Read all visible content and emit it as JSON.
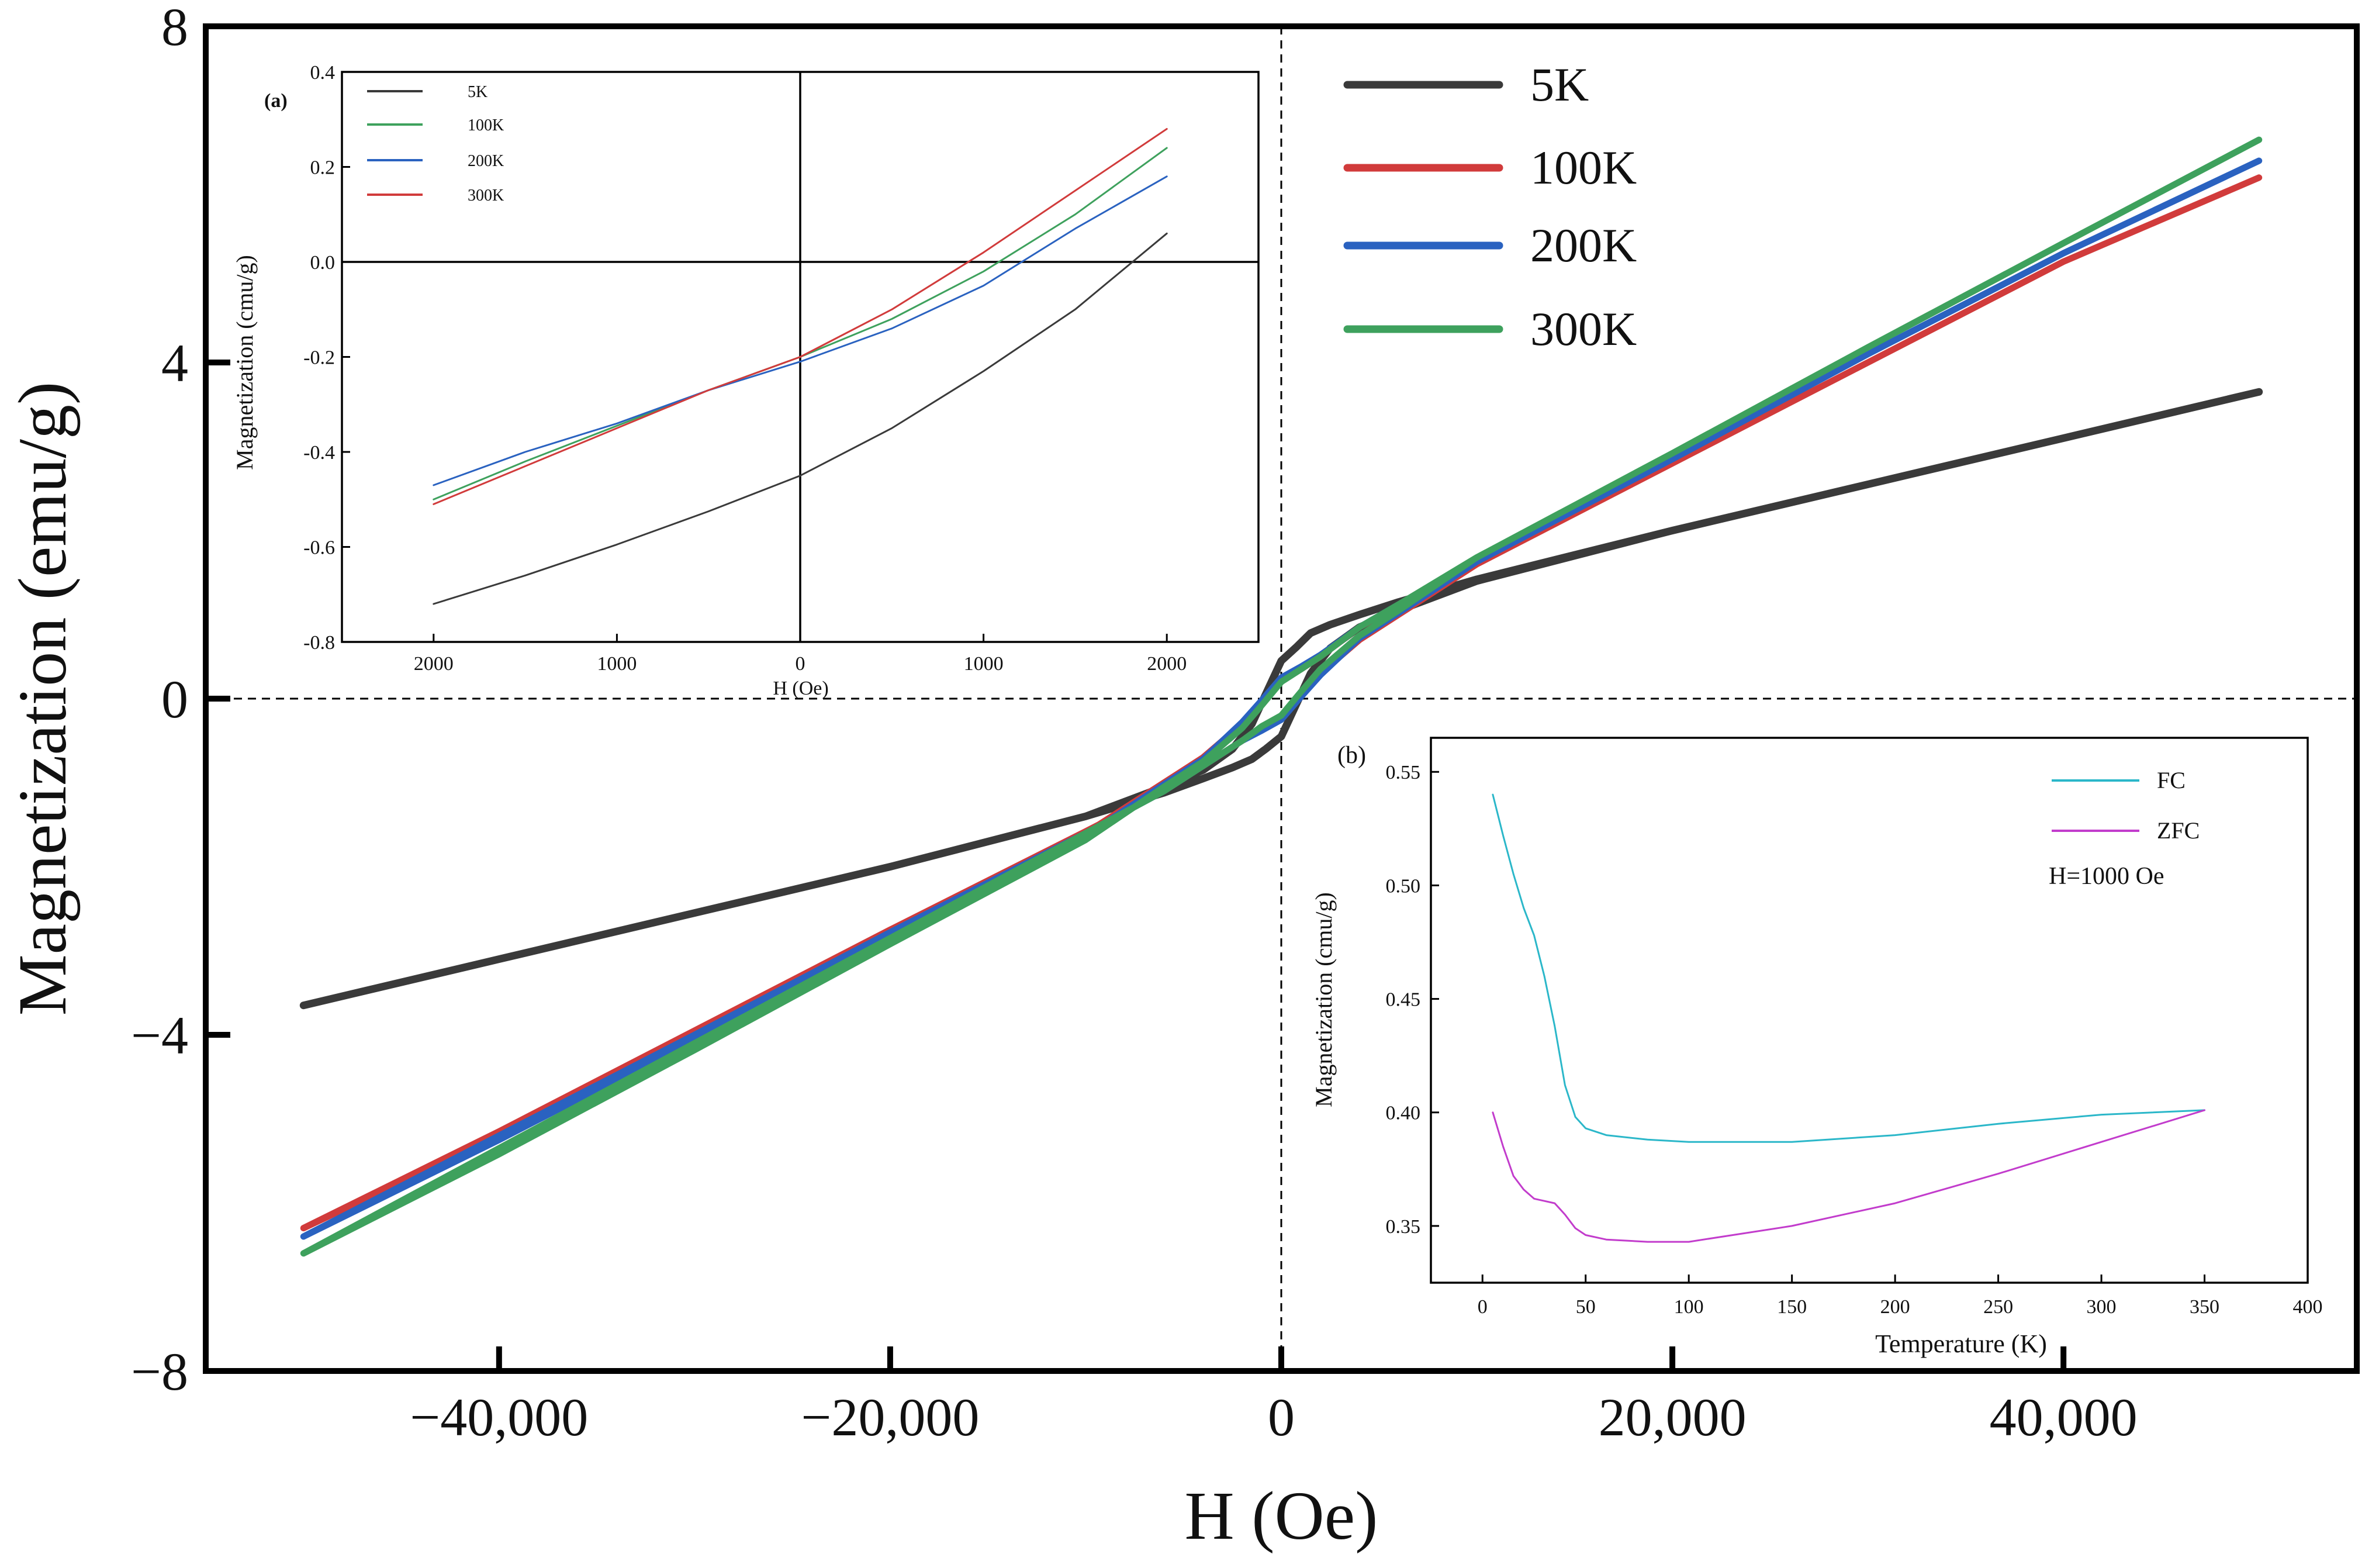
{
  "chart_data": [
    {
      "id": "main",
      "type": "line",
      "xlabel": "H (Oe)",
      "ylabel": "Magnetization (emu/g)",
      "xlim": [
        -55000,
        55000
      ],
      "ylim": [
        -8,
        8
      ],
      "xticks": [
        -40000,
        -20000,
        0,
        20000,
        40000
      ],
      "xtick_labels": [
        "−40,000",
        "−20,000",
        "0",
        "20,000",
        "40,000"
      ],
      "yticks": [
        -8,
        -4,
        0,
        4,
        8
      ],
      "ytick_labels": [
        "−8",
        "−4",
        "0",
        "4",
        "8"
      ],
      "zero_lines": true,
      "legend": {
        "placement": "top-right"
      },
      "series": [
        {
          "name": "5K",
          "color": "#3a3a3a",
          "width": 13,
          "x": [
            -50000,
            -40000,
            -30000,
            -20000,
            -10000,
            -6000,
            -4000,
            -2500,
            -1500,
            -800,
            0,
            800,
            1500,
            2500,
            4000,
            6000,
            10000,
            20000,
            30000,
            40000,
            50000,
            40000,
            30000,
            20000,
            10000,
            6000,
            4000,
            2500,
            1500,
            800,
            0,
            -800,
            -1500,
            -2500,
            -4000,
            -6000,
            -10000,
            -20000,
            -30000,
            -40000,
            -50000
          ],
          "y": [
            -3.65,
            -3.1,
            -2.55,
            -2.0,
            -1.4,
            -1.12,
            -0.95,
            -0.82,
            -0.72,
            -0.6,
            -0.45,
            -0.05,
            0.3,
            0.6,
            0.85,
            1.05,
            1.4,
            2.0,
            2.55,
            3.1,
            3.65,
            3.1,
            2.55,
            2.0,
            1.42,
            1.15,
            1.0,
            0.88,
            0.78,
            0.62,
            0.45,
            0.05,
            -0.3,
            -0.6,
            -0.85,
            -1.05,
            -1.4,
            -2.0,
            -2.55,
            -3.1,
            -3.65
          ]
        },
        {
          "name": "100K",
          "color": "#d13b3b",
          "width": 11,
          "x": [
            -50000,
            -40000,
            -30000,
            -20000,
            -10000,
            -6000,
            -4000,
            -2000,
            -1000,
            0,
            1000,
            2000,
            4000,
            6000,
            10000,
            20000,
            30000,
            40000,
            50000,
            40000,
            30000,
            20000,
            10000,
            6000,
            4000,
            2000,
            1000,
            0,
            -1000,
            -2000,
            -4000,
            -6000,
            -10000,
            -20000,
            -30000,
            -40000,
            -50000
          ],
          "y": [
            -6.3,
            -5.15,
            -3.95,
            -2.75,
            -1.58,
            -1.1,
            -0.8,
            -0.5,
            -0.35,
            -0.22,
            0.05,
            0.3,
            0.7,
            1.0,
            1.6,
            2.8,
            4.0,
            5.2,
            6.2,
            5.2,
            4.0,
            2.8,
            1.62,
            1.1,
            0.85,
            0.5,
            0.35,
            0.22,
            -0.05,
            -0.3,
            -0.7,
            -1.0,
            -1.6,
            -2.8,
            -4.0,
            -5.2,
            -6.3
          ]
        },
        {
          "name": "200K",
          "color": "#2a62c0",
          "width": 11,
          "x": [
            -50000,
            -40000,
            -30000,
            -20000,
            -10000,
            -6000,
            -4000,
            -2000,
            -1000,
            0,
            1000,
            2000,
            4000,
            6000,
            10000,
            20000,
            30000,
            40000,
            50000,
            40000,
            30000,
            20000,
            10000,
            6000,
            4000,
            2000,
            1000,
            0,
            -1000,
            -2000,
            -4000,
            -6000,
            -10000,
            -20000,
            -30000,
            -40000,
            -50000
          ],
          "y": [
            -6.4,
            -5.2,
            -4.0,
            -2.78,
            -1.6,
            -1.1,
            -0.8,
            -0.5,
            -0.38,
            -0.25,
            0.02,
            0.28,
            0.72,
            1.02,
            1.63,
            2.85,
            4.1,
            5.3,
            6.4,
            5.3,
            4.1,
            2.85,
            1.65,
            1.12,
            0.85,
            0.52,
            0.38,
            0.25,
            -0.02,
            -0.28,
            -0.72,
            -1.02,
            -1.63,
            -2.85,
            -4.05,
            -5.25,
            -6.4
          ]
        },
        {
          "name": "300K",
          "color": "#3ea15d",
          "width": 11,
          "x": [
            -50000,
            -40000,
            -30000,
            -20000,
            -10000,
            -6000,
            -4000,
            -2000,
            -1000,
            0,
            1000,
            2000,
            4000,
            6000,
            10000,
            20000,
            30000,
            40000,
            50000,
            40000,
            30000,
            20000,
            10000,
            6000,
            4000,
            2000,
            1000,
            0,
            -1000,
            -2000,
            -4000,
            -6000,
            -10000,
            -20000,
            -30000,
            -40000,
            -50000
          ],
          "y": [
            -6.6,
            -5.35,
            -4.1,
            -2.85,
            -1.6,
            -1.1,
            -0.8,
            -0.5,
            -0.33,
            -0.2,
            0.08,
            0.35,
            0.75,
            1.05,
            1.68,
            2.92,
            4.18,
            5.42,
            6.65,
            5.42,
            4.18,
            2.92,
            1.68,
            1.12,
            0.85,
            0.5,
            0.35,
            0.2,
            -0.08,
            -0.35,
            -0.75,
            -1.05,
            -1.68,
            -2.92,
            -4.18,
            -5.42,
            -6.6
          ]
        }
      ]
    },
    {
      "id": "inset_a",
      "type": "line",
      "panel_label": "(a)",
      "xlabel": "H (Oe)",
      "ylabel": "Magnetization (cmu/g)",
      "xlim": [
        -2500,
        2500
      ],
      "ylim": [
        -0.8,
        0.4
      ],
      "xticks": [
        -2000,
        -1000,
        0,
        1000,
        2000
      ],
      "xtick_labels": [
        "2000",
        "1000",
        "0",
        "1000",
        "2000"
      ],
      "yticks": [
        0.4,
        0.2,
        0.0,
        -0.2,
        -0.4,
        -0.6,
        -0.8
      ],
      "ytick_labels": [
        "0.4",
        "0.2",
        "0.0",
        "-0.2",
        "-0.4",
        "-0.6",
        "-0.8"
      ],
      "zero_lines": true,
      "legend": {
        "placement": "top-left"
      },
      "series": [
        {
          "name": "5K",
          "color": "#3a3a3a",
          "width": 3,
          "x": [
            -2000,
            -1500,
            -1000,
            -500,
            0,
            500,
            1000,
            1500,
            2000
          ],
          "y": [
            -0.72,
            -0.66,
            -0.595,
            -0.525,
            -0.45,
            -0.35,
            -0.23,
            -0.1,
            0.06
          ]
        },
        {
          "name": "100K",
          "color": "#3ea15d",
          "width": 3,
          "x": [
            -2000,
            -1500,
            -1000,
            -500,
            0,
            500,
            1000,
            1500,
            2000
          ],
          "y": [
            -0.5,
            -0.42,
            -0.345,
            -0.27,
            -0.2,
            -0.12,
            -0.02,
            0.1,
            0.24
          ]
        },
        {
          "name": "200K",
          "color": "#2a62c0",
          "width": 3,
          "x": [
            -2000,
            -1500,
            -1000,
            -500,
            0,
            500,
            1000,
            1500,
            2000
          ],
          "y": [
            -0.47,
            -0.4,
            -0.34,
            -0.27,
            -0.21,
            -0.14,
            -0.05,
            0.07,
            0.18
          ]
        },
        {
          "name": "300K",
          "color": "#d13b3b",
          "width": 3,
          "x": [
            -2000,
            -1500,
            -1000,
            -500,
            0,
            500,
            1000,
            1500,
            2000
          ],
          "y": [
            -0.51,
            -0.43,
            -0.35,
            -0.27,
            -0.2,
            -0.1,
            0.02,
            0.15,
            0.28
          ]
        }
      ]
    },
    {
      "id": "inset_b",
      "type": "line",
      "panel_label": "(b)",
      "xlabel": "Temperature (K)",
      "ylabel": "Magnetization (cmu/g)",
      "xlim": [
        -25,
        400
      ],
      "ylim": [
        0.325,
        0.565
      ],
      "xticks": [
        0,
        50,
        100,
        150,
        200,
        250,
        300,
        350,
        400
      ],
      "xtick_labels": [
        "0",
        "50",
        "100",
        "150",
        "200",
        "250",
        "300",
        "350",
        "400"
      ],
      "yticks": [
        0.35,
        0.4,
        0.45,
        0.5,
        0.55
      ],
      "ytick_labels": [
        "0.35",
        "0.40",
        "0.45",
        "0.50",
        "0.55"
      ],
      "annotation": "H=1000 Oe",
      "legend": {
        "placement": "top-right"
      },
      "series": [
        {
          "name": "FC",
          "color": "#2bb7c9",
          "width": 3,
          "x": [
            5,
            10,
            15,
            20,
            25,
            30,
            35,
            40,
            45,
            50,
            60,
            80,
            100,
            150,
            200,
            250,
            300,
            350
          ],
          "y": [
            0.54,
            0.522,
            0.505,
            0.49,
            0.478,
            0.46,
            0.438,
            0.412,
            0.398,
            0.393,
            0.39,
            0.388,
            0.387,
            0.387,
            0.39,
            0.395,
            0.399,
            0.401
          ]
        },
        {
          "name": "ZFC",
          "color": "#c23ccc",
          "width": 3,
          "x": [
            5,
            10,
            15,
            20,
            25,
            30,
            35,
            40,
            45,
            50,
            60,
            80,
            100,
            150,
            200,
            250,
            300,
            350
          ],
          "y": [
            0.4,
            0.385,
            0.372,
            0.366,
            0.362,
            0.361,
            0.36,
            0.355,
            0.349,
            0.346,
            0.344,
            0.343,
            0.343,
            0.35,
            0.36,
            0.373,
            0.387,
            0.401
          ]
        }
      ]
    }
  ]
}
